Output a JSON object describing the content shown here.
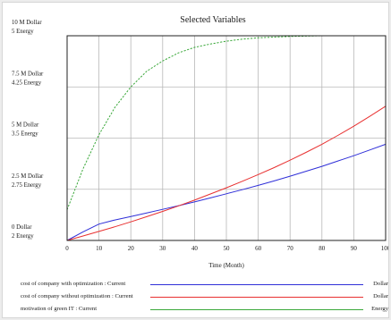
{
  "chart_data": {
    "type": "line",
    "title": "Selected Variables",
    "xlabel": "Time (Month)",
    "xlim": [
      0,
      100
    ],
    "x_ticks": [
      "0",
      "10",
      "20",
      "30",
      "40",
      "50",
      "60",
      "70",
      "80",
      "90",
      "100"
    ],
    "grid": true,
    "legend_placement": "bottom",
    "y_axes": [
      {
        "unit": "Dollar",
        "ylim": [
          0,
          10000000
        ],
        "tick_labels": [
          "0 Dollar",
          "2.5 M Dollar",
          "5 M Dollar",
          "7.5 M Dollar",
          "10 M Dollar"
        ]
      },
      {
        "unit": "Energy",
        "ylim": [
          2,
          5
        ],
        "tick_labels": [
          "2 Energy",
          "2.75 Energy",
          "3.5 Energy",
          "4.25 Energy",
          "5 Energy"
        ]
      }
    ],
    "y_tick_left": [
      [
        "0",
        "Dollar"
      ],
      [
        "2.5 M",
        "Dollar"
      ],
      [
        "5 M",
        "Dollar"
      ],
      [
        "7.5 M",
        "Dollar"
      ],
      [
        "10 M",
        "Dollar"
      ]
    ],
    "y_tick_right": [
      "2",
      "2.75",
      "3.5",
      "4.25",
      "5"
    ],
    "y_tick_unit": "Energy",
    "x": [
      0,
      5,
      10,
      15,
      20,
      25,
      30,
      35,
      40,
      45,
      50,
      55,
      60,
      65,
      70,
      75,
      80,
      85,
      90,
      95,
      100
    ],
    "series": [
      {
        "name": "cost of company with optimization : Current",
        "unit": "Dollar",
        "axis": 0,
        "color": "#2f2fd8",
        "values": [
          0,
          420000,
          800000,
          1000000,
          1170000,
          1340000,
          1520000,
          1700000,
          1880000,
          2080000,
          2280000,
          2480000,
          2690000,
          2910000,
          3140000,
          3380000,
          3620000,
          3880000,
          4140000,
          4420000,
          4700000
        ]
      },
      {
        "name": "cost of company without optimization : Current",
        "unit": "Dollar",
        "axis": 0,
        "color": "#e83030",
        "values": [
          0,
          220000,
          440000,
          670000,
          910000,
          1160000,
          1420000,
          1690000,
          1970000,
          2270000,
          2570000,
          2890000,
          3220000,
          3560000,
          3920000,
          4300000,
          4700000,
          5130000,
          5580000,
          6060000,
          6560000
        ]
      },
      {
        "name": "motivation of green IT : Current",
        "unit": "Energy",
        "axis": 1,
        "color": "#3aa83a",
        "values": [
          2.45,
          3.05,
          3.55,
          3.95,
          4.25,
          4.48,
          4.63,
          4.75,
          4.83,
          4.88,
          4.92,
          4.95,
          4.97,
          4.98,
          4.99,
          4.995,
          5.0,
          5.0,
          5.0,
          5.0,
          5.0
        ]
      }
    ]
  }
}
